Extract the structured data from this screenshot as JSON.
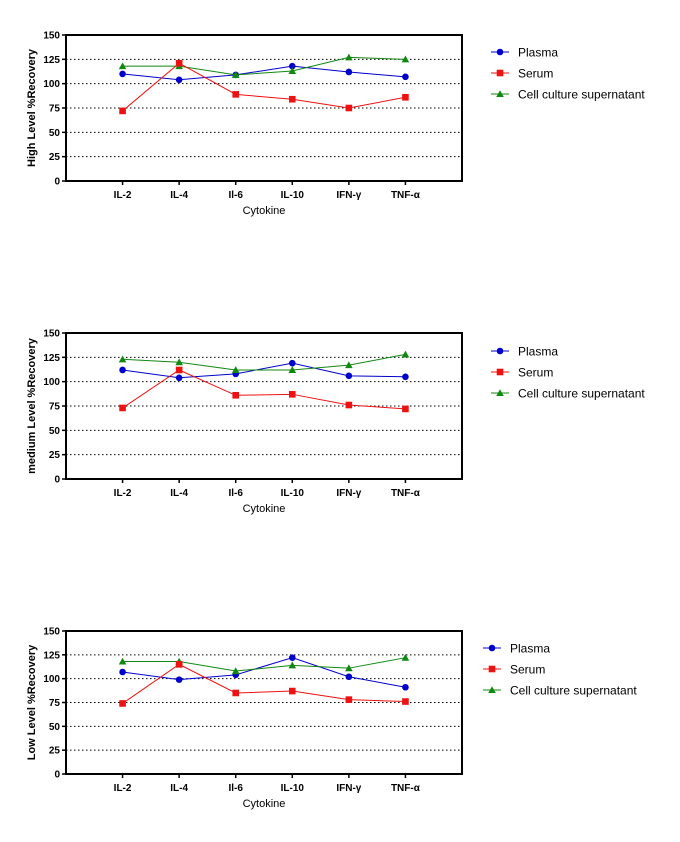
{
  "chart_data": [
    {
      "type": "line",
      "categories": [
        "IL-2",
        "IL-4",
        "Il-6",
        "IL-10",
        "IFN-γ",
        "TNF-α"
      ],
      "ylabel": "High Level %Recovery",
      "xlabel": "Cytokine",
      "ylim": [
        0,
        150
      ],
      "yticks": [
        0,
        25,
        50,
        75,
        100,
        125,
        150
      ],
      "grid": "dotted horizontal at 25-125",
      "legend_position": "right",
      "series": [
        {
          "name": "Plasma",
          "color": "#0000cc",
          "marker": "circle",
          "values": [
            110,
            104,
            109,
            118,
            112,
            107
          ]
        },
        {
          "name": "Serum",
          "color": "#ee1111",
          "marker": "square",
          "values": [
            72,
            121,
            89,
            84,
            75,
            86
          ]
        },
        {
          "name": "Cell culture supernatant",
          "color": "#118811",
          "marker": "triangle",
          "values": [
            118,
            118,
            109,
            113,
            127,
            125
          ]
        }
      ]
    },
    {
      "type": "line",
      "categories": [
        "IL-2",
        "IL-4",
        "Il-6",
        "IL-10",
        "IFN-γ",
        "TNF-α"
      ],
      "ylabel": "medium Level %Recovery",
      "xlabel": "Cytokine",
      "ylim": [
        0,
        150
      ],
      "yticks": [
        0,
        25,
        50,
        75,
        100,
        125,
        150
      ],
      "grid": "dotted horizontal at 25-125",
      "legend_position": "right",
      "series": [
        {
          "name": "Plasma",
          "color": "#0000cc",
          "marker": "circle",
          "values": [
            112,
            104,
            108,
            119,
            106,
            105
          ]
        },
        {
          "name": "Serum",
          "color": "#ee1111",
          "marker": "square",
          "values": [
            73,
            112,
            86,
            87,
            76,
            72
          ]
        },
        {
          "name": "Cell culture supernatant",
          "color": "#118811",
          "marker": "triangle",
          "values": [
            123,
            120,
            112,
            112,
            117,
            128
          ]
        }
      ]
    },
    {
      "type": "line",
      "categories": [
        "IL-2",
        "IL-4",
        "Il-6",
        "IL-10",
        "IFN-γ",
        "TNF-α"
      ],
      "ylabel": "Low Level %Recovery",
      "xlabel": "Cytokine",
      "ylim": [
        0,
        150
      ],
      "yticks": [
        0,
        25,
        50,
        75,
        100,
        125,
        150
      ],
      "grid": "dotted horizontal at 25-125",
      "legend_position": "right",
      "series": [
        {
          "name": "Plasma",
          "color": "#0000cc",
          "marker": "circle",
          "values": [
            107,
            99,
            104,
            122,
            102,
            91
          ]
        },
        {
          "name": "Serum",
          "color": "#ee1111",
          "marker": "square",
          "values": [
            74,
            115,
            85,
            87,
            78,
            76
          ]
        },
        {
          "name": "Cell culture supernatant",
          "color": "#118811",
          "marker": "triangle",
          "values": [
            118,
            118,
            108,
            114,
            111,
            122
          ]
        }
      ]
    }
  ]
}
